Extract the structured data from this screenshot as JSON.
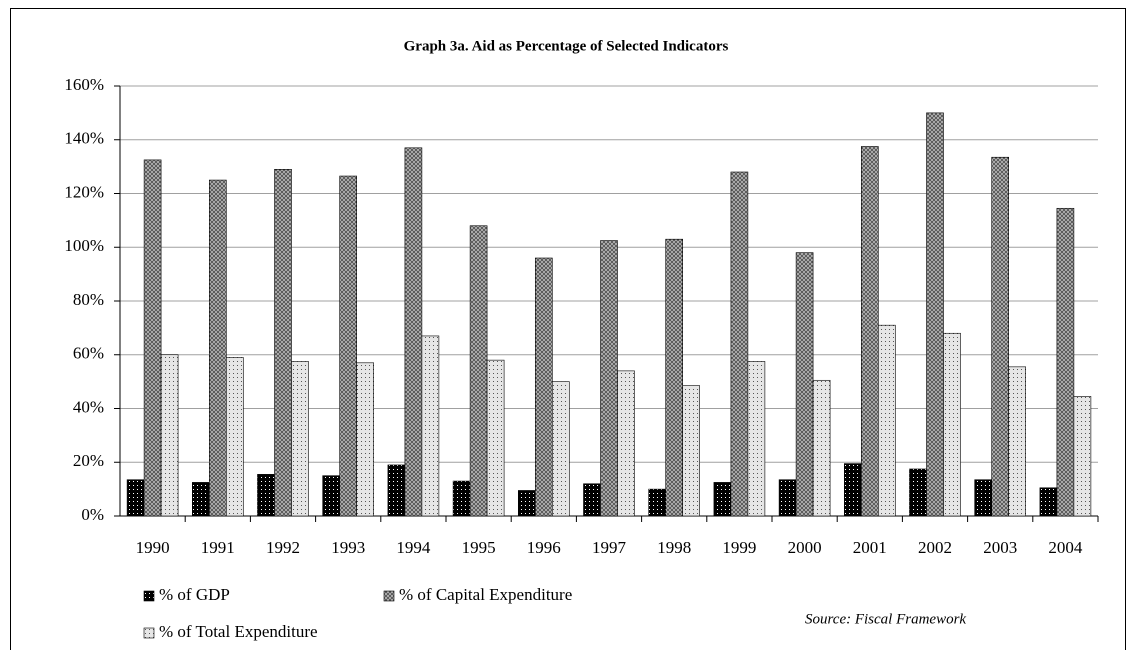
{
  "chart_data": {
    "type": "bar",
    "title": "Graph 3a. Aid as Percentage of Selected Indicators",
    "source": "Source: Fiscal Framework",
    "categories": [
      "1990",
      "1991",
      "1992",
      "1993",
      "1994",
      "1995",
      "1996",
      "1997",
      "1998",
      "1999",
      "2000",
      "2001",
      "2002",
      "2003",
      "2004"
    ],
    "series": [
      {
        "name": "% of GDP",
        "color": "#000000",
        "values": [
          13.5,
          12.5,
          15.5,
          15,
          19,
          13,
          9.5,
          12,
          10,
          12.5,
          13.5,
          19.5,
          17.5,
          13.5,
          10.5
        ]
      },
      {
        "name": "% of Capital Expenditure",
        "color": "#4a4a4a",
        "values": [
          132.5,
          125,
          129,
          126.5,
          137,
          108,
          96,
          102.5,
          103,
          128,
          98,
          137.5,
          150,
          133.5,
          114.5
        ]
      },
      {
        "name": "% of Total Expenditure",
        "color": "#e6e6e6",
        "values": [
          60,
          59,
          57.5,
          57,
          67,
          58,
          50,
          54,
          48.5,
          57.5,
          50.5,
          71,
          68,
          55.5,
          44.5
        ]
      }
    ],
    "ylim": [
      0,
      160
    ],
    "yticks": [
      {
        "value": 0,
        "label": "0%"
      },
      {
        "value": 20,
        "label": "20%"
      },
      {
        "value": 40,
        "label": "40%"
      },
      {
        "value": 60,
        "label": "60%"
      },
      {
        "value": 80,
        "label": "80%"
      },
      {
        "value": 100,
        "label": "100%"
      },
      {
        "value": 120,
        "label": "120%"
      },
      {
        "value": 140,
        "label": "140%"
      },
      {
        "value": 160,
        "label": "160%"
      }
    ],
    "grid": true
  }
}
